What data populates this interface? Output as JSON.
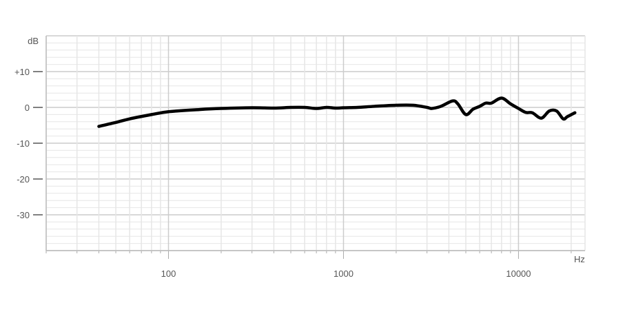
{
  "chart_data": {
    "type": "line",
    "x_scale": "log",
    "xlabel": "Hz",
    "ylabel": "dB",
    "xlim": [
      20,
      24000
    ],
    "ylim": [
      -40,
      20
    ],
    "x_ticks": [
      {
        "value": 100,
        "label": "100"
      },
      {
        "value": 1000,
        "label": "1000"
      },
      {
        "value": 10000,
        "label": "10000"
      }
    ],
    "y_ticks": [
      {
        "value": 10,
        "label": "+10"
      },
      {
        "value": 0,
        "label": "0"
      },
      {
        "value": -10,
        "label": "-10"
      },
      {
        "value": -20,
        "label": "-20"
      },
      {
        "value": -30,
        "label": "-30"
      }
    ],
    "grid": true,
    "line_color": "#000000",
    "grid_color": "#e6e6e6",
    "major_grid_color": "#cccccc",
    "series": [
      {
        "x": [
          40,
          50,
          60,
          80,
          100,
          150,
          200,
          300,
          400,
          500,
          600,
          700,
          800,
          900,
          1000,
          1200,
          1500,
          2000,
          2500,
          3000,
          3200,
          3600,
          4200,
          4500,
          5000,
          5500,
          6000,
          6500,
          7000,
          8000,
          9000,
          10000,
          11000,
          12000,
          13500,
          15000,
          16500,
          18000,
          19000,
          21000
        ],
        "y": [
          -5.3,
          -4.2,
          -3.2,
          -2.0,
          -1.2,
          -0.6,
          -0.3,
          -0.1,
          -0.2,
          0,
          0,
          -0.3,
          0,
          -0.2,
          -0.1,
          0,
          0.3,
          0.6,
          0.6,
          0,
          -0.3,
          0.3,
          1.8,
          1.0,
          -2.0,
          -0.5,
          0.3,
          1.2,
          1.2,
          2.6,
          1.0,
          -0.3,
          -1.4,
          -1.5,
          -3.0,
          -1.0,
          -1.0,
          -3.2,
          -2.6,
          -1.5
        ]
      }
    ]
  }
}
